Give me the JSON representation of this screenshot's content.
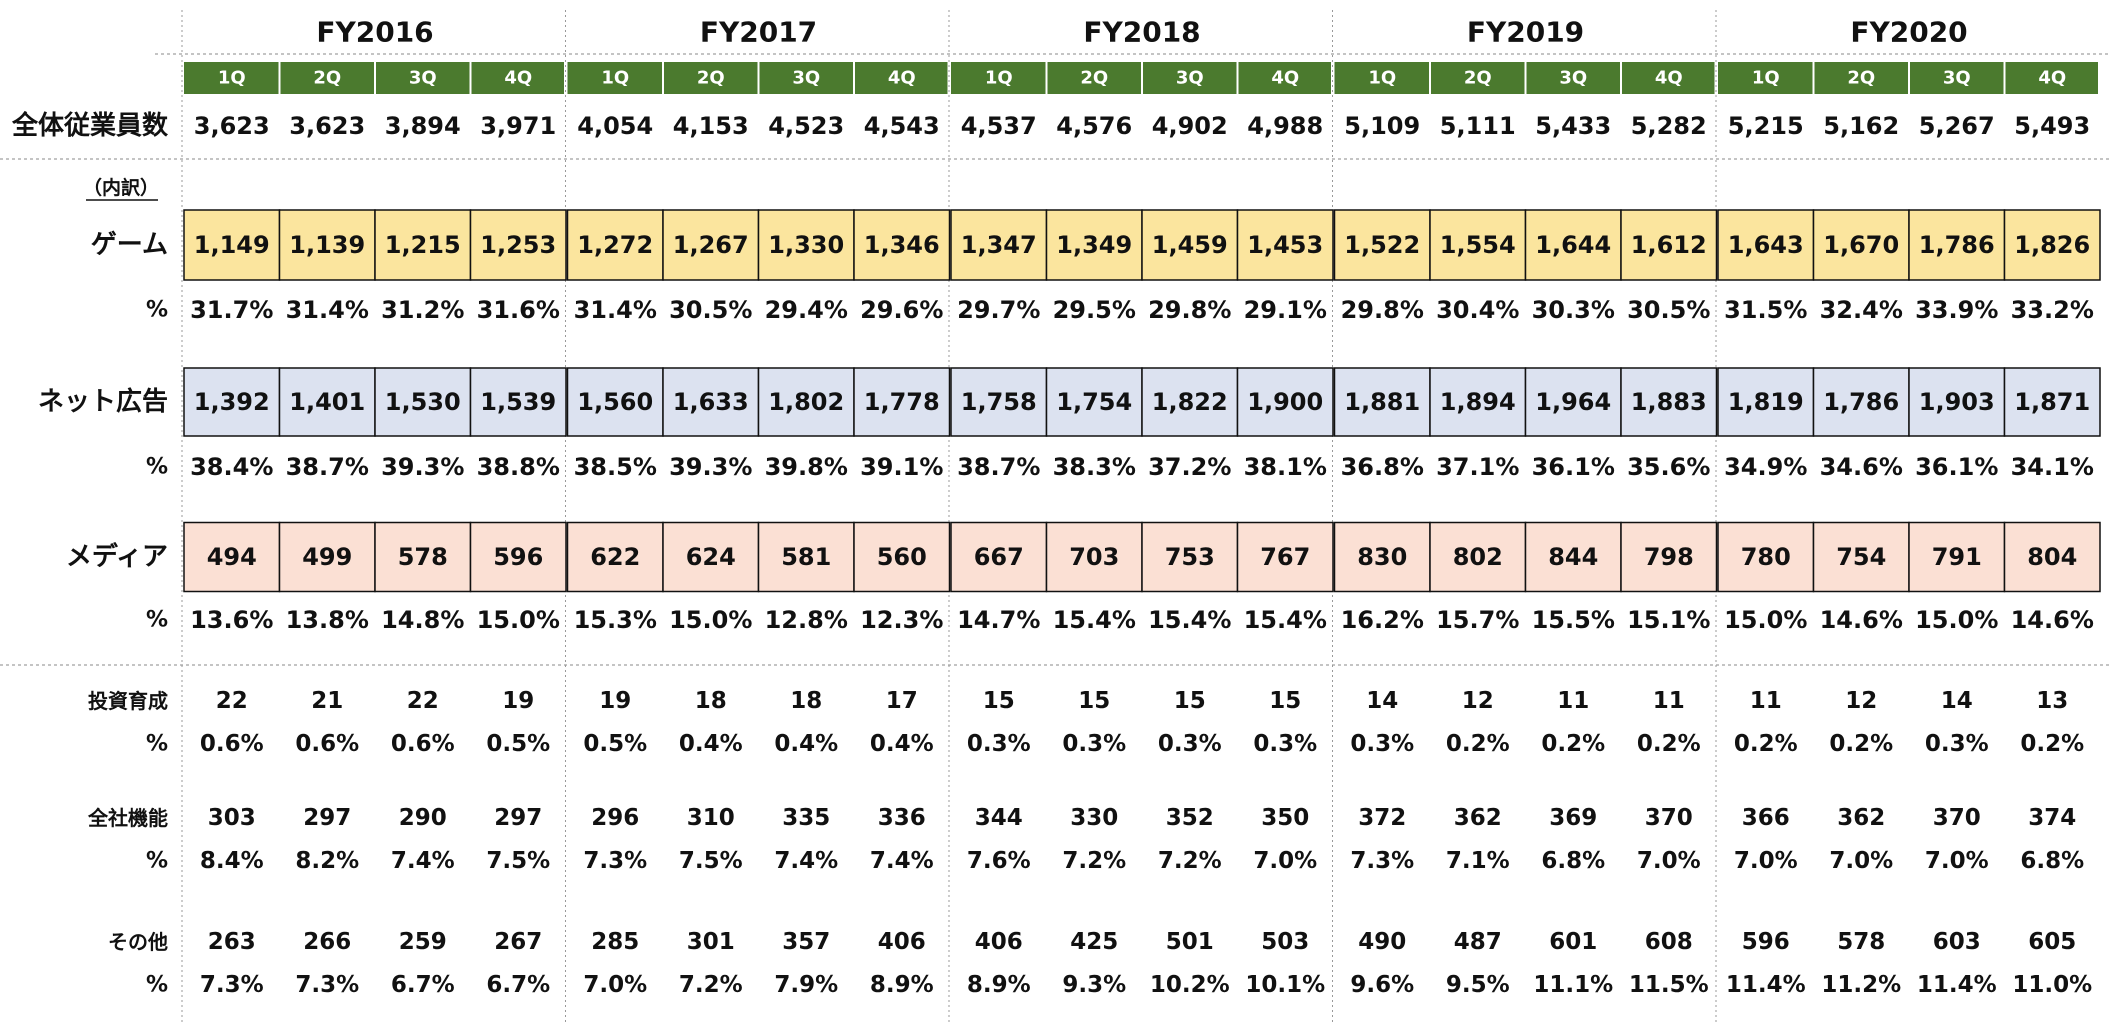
{
  "table": {
    "years": [
      "FY2016",
      "FY2017",
      "FY2018",
      "FY2019",
      "FY2020"
    ],
    "quarters": [
      "1Q",
      "2Q",
      "3Q",
      "4Q"
    ],
    "quarter_color": "#4b7a2e",
    "breakdown_label": "（内訳）",
    "rows": [
      {
        "label": "全体従業員数",
        "values": [
          "3,623",
          "3,623",
          "3,894",
          "3,971",
          "4,054",
          "4,153",
          "4,523",
          "4,543",
          "4,537",
          "4,576",
          "4,902",
          "4,988",
          "5,109",
          "5,111",
          "5,433",
          "5,282",
          "5,215",
          "5,162",
          "5,267",
          "5,493"
        ]
      },
      {
        "label": "ゲーム",
        "fill": "#fbe59e",
        "values": [
          "1,149",
          "1,139",
          "1,215",
          "1,253",
          "1,272",
          "1,267",
          "1,330",
          "1,346",
          "1,347",
          "1,349",
          "1,459",
          "1,453",
          "1,522",
          "1,554",
          "1,644",
          "1,612",
          "1,643",
          "1,670",
          "1,786",
          "1,826"
        ]
      },
      {
        "label": "%",
        "values": [
          "31.7%",
          "31.4%",
          "31.2%",
          "31.6%",
          "31.4%",
          "30.5%",
          "29.4%",
          "29.6%",
          "29.7%",
          "29.5%",
          "29.8%",
          "29.1%",
          "29.8%",
          "30.4%",
          "30.3%",
          "30.5%",
          "31.5%",
          "32.4%",
          "33.9%",
          "33.2%"
        ]
      },
      {
        "label": "ネット広告",
        "fill": "#dce2f0",
        "values": [
          "1,392",
          "1,401",
          "1,530",
          "1,539",
          "1,560",
          "1,633",
          "1,802",
          "1,778",
          "1,758",
          "1,754",
          "1,822",
          "1,900",
          "1,881",
          "1,894",
          "1,964",
          "1,883",
          "1,819",
          "1,786",
          "1,903",
          "1,871"
        ]
      },
      {
        "label": "%",
        "values": [
          "38.4%",
          "38.7%",
          "39.3%",
          "38.8%",
          "38.5%",
          "39.3%",
          "39.8%",
          "39.1%",
          "38.7%",
          "38.3%",
          "37.2%",
          "38.1%",
          "36.8%",
          "37.1%",
          "36.1%",
          "35.6%",
          "34.9%",
          "34.6%",
          "36.1%",
          "34.1%"
        ]
      },
      {
        "label": "メディア",
        "fill": "#fbe0d4",
        "values": [
          "494",
          "499",
          "578",
          "596",
          "622",
          "624",
          "581",
          "560",
          "667",
          "703",
          "753",
          "767",
          "830",
          "802",
          "844",
          "798",
          "780",
          "754",
          "791",
          "804"
        ]
      },
      {
        "label": "%",
        "values": [
          "13.6%",
          "13.8%",
          "14.8%",
          "15.0%",
          "15.3%",
          "15.0%",
          "12.8%",
          "12.3%",
          "14.7%",
          "15.4%",
          "15.4%",
          "15.4%",
          "16.2%",
          "15.7%",
          "15.5%",
          "15.1%",
          "15.0%",
          "14.6%",
          "15.0%",
          "14.6%"
        ]
      },
      {
        "label": "投資育成",
        "values": [
          "22",
          "21",
          "22",
          "19",
          "19",
          "18",
          "18",
          "17",
          "15",
          "15",
          "15",
          "15",
          "14",
          "12",
          "11",
          "11",
          "11",
          "12",
          "14",
          "13"
        ]
      },
      {
        "label": "%",
        "values": [
          "0.6%",
          "0.6%",
          "0.6%",
          "0.5%",
          "0.5%",
          "0.4%",
          "0.4%",
          "0.4%",
          "0.3%",
          "0.3%",
          "0.3%",
          "0.3%",
          "0.3%",
          "0.2%",
          "0.2%",
          "0.2%",
          "0.2%",
          "0.2%",
          "0.3%",
          "0.2%"
        ]
      },
      {
        "label": "全社機能",
        "values": [
          "303",
          "297",
          "290",
          "297",
          "296",
          "310",
          "335",
          "336",
          "344",
          "330",
          "352",
          "350",
          "372",
          "362",
          "369",
          "370",
          "366",
          "362",
          "370",
          "374"
        ]
      },
      {
        "label": "%",
        "values": [
          "8.4%",
          "8.2%",
          "7.4%",
          "7.5%",
          "7.3%",
          "7.5%",
          "7.4%",
          "7.4%",
          "7.6%",
          "7.2%",
          "7.2%",
          "7.0%",
          "7.3%",
          "7.1%",
          "6.8%",
          "7.0%",
          "7.0%",
          "7.0%",
          "7.0%",
          "6.8%"
        ]
      },
      {
        "label": "その他",
        "values": [
          "263",
          "266",
          "259",
          "267",
          "285",
          "301",
          "357",
          "406",
          "406",
          "425",
          "501",
          "503",
          "490",
          "487",
          "601",
          "608",
          "596",
          "578",
          "603",
          "605"
        ]
      },
      {
        "label": "%",
        "values": [
          "7.3%",
          "7.3%",
          "6.7%",
          "6.7%",
          "7.0%",
          "7.2%",
          "7.9%",
          "8.9%",
          "8.9%",
          "9.3%",
          "10.2%",
          "10.1%",
          "9.6%",
          "9.5%",
          "11.1%",
          "11.5%",
          "11.4%",
          "11.2%",
          "11.4%",
          "11.0%"
        ]
      }
    ]
  }
}
